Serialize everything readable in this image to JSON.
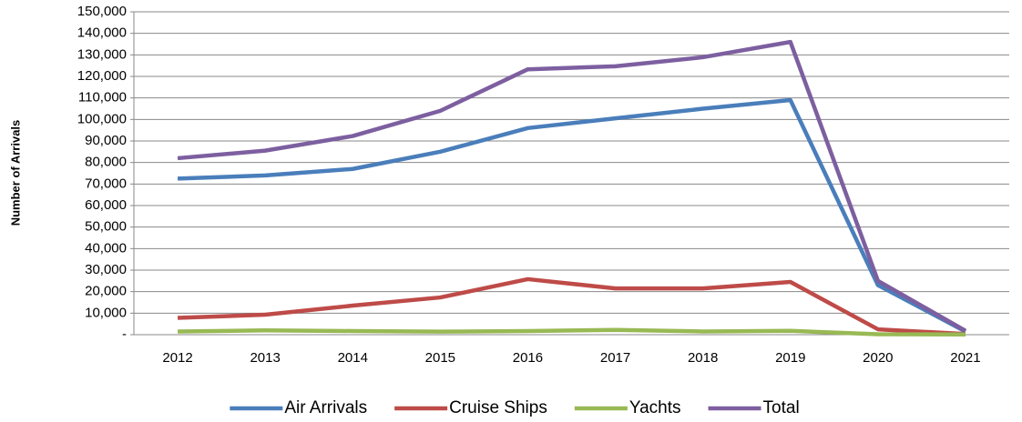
{
  "chart_data": {
    "type": "line",
    "y_label": "Number of Arrivals",
    "categories": [
      "2012",
      "2013",
      "2014",
      "2015",
      "2016",
      "2017",
      "2018",
      "2019",
      "2020",
      "2021"
    ],
    "series": [
      {
        "name": "Air Arrivals",
        "color": "#4a7ebb",
        "values": [
          72500,
          74000,
          77000,
          85000,
          96000,
          100500,
          105000,
          109000,
          23000,
          1500
        ]
      },
      {
        "name": "Cruise Ships",
        "color": "#be4b48",
        "values": [
          7800,
          9300,
          13500,
          17300,
          25800,
          21500,
          21500,
          24500,
          2500,
          300
        ]
      },
      {
        "name": "Yachts",
        "color": "#98b954",
        "values": [
          1500,
          2000,
          1700,
          1400,
          1700,
          2200,
          1500,
          1800,
          200,
          100
        ]
      },
      {
        "name": "Total",
        "color": "#7d5fa0",
        "values": [
          82000,
          85500,
          92300,
          104000,
          123300,
          124700,
          128900,
          136000,
          25000,
          1800
        ]
      }
    ],
    "ylim": [
      0,
      150000
    ],
    "yticks": [
      {
        "value": 0,
        "label": "-"
      },
      {
        "value": 10000,
        "label": "10,000"
      },
      {
        "value": 20000,
        "label": "20,000"
      },
      {
        "value": 30000,
        "label": "30,000"
      },
      {
        "value": 40000,
        "label": "40,000"
      },
      {
        "value": 50000,
        "label": "50,000"
      },
      {
        "value": 60000,
        "label": "60,000"
      },
      {
        "value": 70000,
        "label": "70,000"
      },
      {
        "value": 80000,
        "label": "80,000"
      },
      {
        "value": 90000,
        "label": "90,000"
      },
      {
        "value": 100000,
        "label": "100,000"
      },
      {
        "value": 110000,
        "label": "110,000"
      },
      {
        "value": 120000,
        "label": "120,000"
      },
      {
        "value": 130000,
        "label": "130,000"
      },
      {
        "value": 140000,
        "label": "140,000"
      },
      {
        "value": 150000,
        "label": "150,000"
      }
    ],
    "grid": true,
    "legend": "bottom"
  }
}
